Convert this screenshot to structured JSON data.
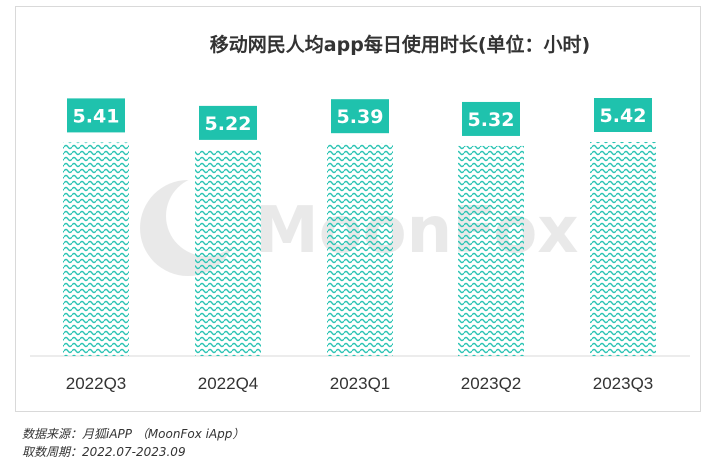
{
  "chart_data": {
    "type": "bar",
    "title": "移动网民人均app每日使用时长(单位：小时)",
    "categories": [
      "2022Q3",
      "2022Q4",
      "2023Q1",
      "2023Q2",
      "2023Q3"
    ],
    "values": [
      5.41,
      5.22,
      5.39,
      5.32,
      5.42
    ],
    "value_labels": [
      "5.41",
      "5.22",
      "5.39",
      "5.32",
      "5.42"
    ],
    "xlabel": "",
    "ylabel": "",
    "grid": false,
    "legend": "none",
    "colors": {
      "bar_pattern": "#2cc4b4",
      "label_box": "#1fc2ad",
      "label_text": "#ffffff"
    }
  },
  "watermark": {
    "text": "MoonFox"
  },
  "footer": {
    "source": "数据来源：月狐iAPP （MoonFox iApp）",
    "period": "取数周期：2022.07-2023.09"
  }
}
